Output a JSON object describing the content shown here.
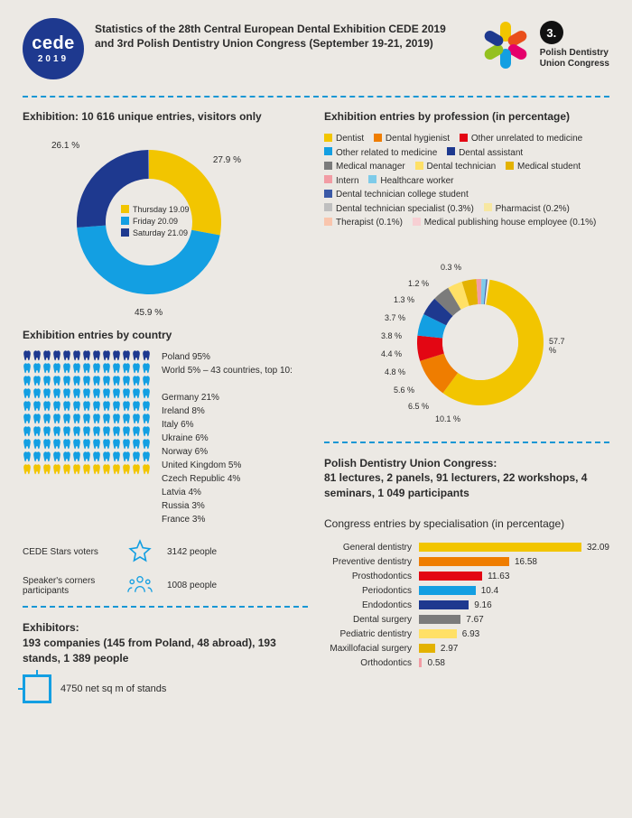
{
  "header": {
    "logo_cede_top": "cede",
    "logo_cede_bottom": "2019",
    "title": "Statistics of the 28th Central European Dental Exhibition CEDE 2019 and 3rd Polish Dentistry Union Congress (September 19-21, 2019)",
    "badge_number": "3.",
    "union_line1": "Polish Dentistry",
    "union_line2": "Union Congress",
    "flower_colors": [
      "#f2c500",
      "#e94e1b",
      "#e5006c",
      "#139fe2",
      "#94c11f",
      "#1e398f"
    ]
  },
  "entries_title": "Exhibition: 10 616 unique entries, visitors only",
  "donut1": {
    "segments": [
      {
        "label": "Thursday 19.09",
        "value": 27.9,
        "color": "#f2c500",
        "labeltext": "27.9 %"
      },
      {
        "label": "Friday 20.09",
        "value": 45.9,
        "color": "#139fe2",
        "labeltext": "45.9 %"
      },
      {
        "label": "Saturday 21.09",
        "value": 26.1,
        "color": "#1e398f",
        "labeltext": "26.1 %"
      }
    ],
    "bg": "#ece9e4"
  },
  "country_title": "Exhibition entries by country",
  "country_main": "Poland 95%",
  "country_world": "World 5% – 43 countries, top 10:",
  "countries": [
    "Germany 21%",
    "Ireland 8%",
    "Italy 6%",
    "Ukraine 6%",
    "Norway 6%",
    "United Kingdom 5%",
    "Czech Republic 4%",
    "Latvia 4%",
    "Russia 3%",
    "France 3%"
  ],
  "teeth_colors": {
    "poland": "#1e398f",
    "world": "#139fe2",
    "highlight": "#f2c500"
  },
  "stars_label": "CEDE Stars voters",
  "stars_value": "3142 people",
  "speakers_label": "Speaker's corners participants",
  "speakers_value": "1008 people",
  "exhibitors_title": "Exhibitors:",
  "exhibitors_line": "193 companies (145 from Poland, 48 abroad), 193 stands, 1 389 people",
  "sqm_text": "4750 net sq m of stands",
  "profession_title": "Exhibition entries by profession (in percentage)",
  "profession_legend": [
    {
      "label": "Dentist",
      "color": "#f2c500"
    },
    {
      "label": "Dental hygienist",
      "color": "#ef7d00"
    },
    {
      "label": "Other unrelated to medicine",
      "color": "#e30613"
    },
    {
      "label": "Other related to medicine",
      "color": "#139fe2"
    },
    {
      "label": "Dental assistant",
      "color": "#1e398f"
    },
    {
      "label": "Medical manager",
      "color": "#7b7b7b"
    },
    {
      "label": "Dental technician",
      "color": "#ffe066"
    },
    {
      "label": "Medical student",
      "color": "#e3b200"
    },
    {
      "label": "Intern",
      "color": "#f29ca4"
    },
    {
      "label": "Healthcare worker",
      "color": "#7ecbe9"
    },
    {
      "label": "Dental technician college student",
      "color": "#3b59a6"
    },
    {
      "label": "Dental technician specialist (0.3%)",
      "color": "#bfbfbf"
    },
    {
      "label": "Pharmacist (0.2%)",
      "color": "#f7e7a1"
    },
    {
      "label": "Therapist (0.1%)",
      "color": "#f9c5ad"
    },
    {
      "label": "Medical publishing house employee (0.1%)",
      "color": "#f7cfd3"
    }
  ],
  "donut2": {
    "segments": [
      {
        "value": 57.7,
        "color": "#f2c500",
        "label": "57.7 %"
      },
      {
        "value": 10.1,
        "color": "#ef7d00",
        "label": "10.1 %"
      },
      {
        "value": 6.5,
        "color": "#e30613",
        "label": "6.5 %"
      },
      {
        "value": 5.6,
        "color": "#139fe2",
        "label": "5.6 %"
      },
      {
        "value": 4.8,
        "color": "#1e398f",
        "label": "4.8 %"
      },
      {
        "value": 4.4,
        "color": "#7b7b7b",
        "label": "4.4 %"
      },
      {
        "value": 3.8,
        "color": "#ffe066",
        "label": "3.8 %"
      },
      {
        "value": 3.7,
        "color": "#e3b200",
        "label": "3.7 %"
      },
      {
        "value": 1.3,
        "color": "#f29ca4",
        "label": "1.3 %"
      },
      {
        "value": 1.2,
        "color": "#7ecbe9",
        "label": "1.2 %"
      },
      {
        "value": 0.3,
        "color": "#3b59a6",
        "label": "0.3 %"
      }
    ]
  },
  "congress_title": "Polish Dentistry Union Congress:",
  "congress_line": "81 lectures, 2 panels, 91 lecturers, 22 workshops, 4 seminars, 1 049 participants",
  "bars_title": "Congress entries by specialisation (in percentage)",
  "bars": [
    {
      "label": "General dentistry",
      "value": 32.09,
      "color": "#f2c500"
    },
    {
      "label": "Preventive dentistry",
      "value": 16.58,
      "color": "#ef7d00"
    },
    {
      "label": "Prosthodontics",
      "value": 11.63,
      "color": "#e30613"
    },
    {
      "label": "Periodontics",
      "value": 10.4,
      "color": "#139fe2"
    },
    {
      "label": "Endodontics",
      "value": 9.16,
      "color": "#1e398f"
    },
    {
      "label": "Dental surgery",
      "value": 7.67,
      "color": "#7b7b7b"
    },
    {
      "label": "Pediatric dentistry",
      "value": 6.93,
      "color": "#ffe066"
    },
    {
      "label": "Maxillofacial surgery",
      "value": 2.97,
      "color": "#e3b200"
    },
    {
      "label": "Orthodontics",
      "value": 0.58,
      "color": "#f29ca4"
    }
  ],
  "bar_max": 35
}
